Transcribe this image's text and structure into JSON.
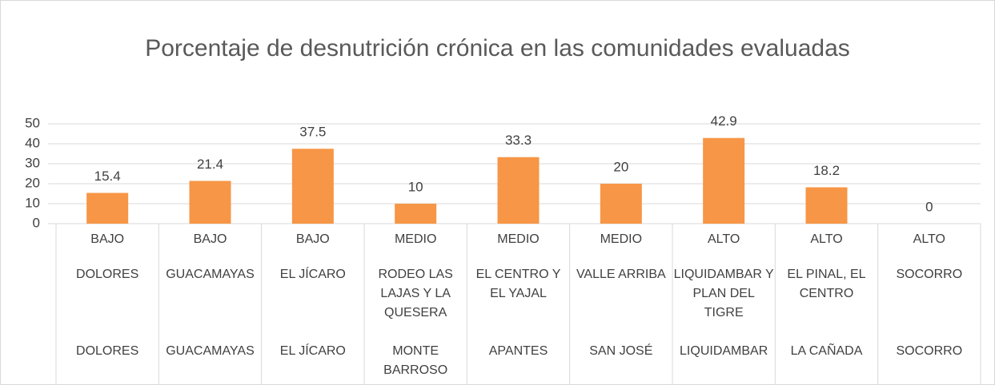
{
  "chart_data": {
    "type": "bar",
    "title": "Porcentaje de desnutrición crónica en las comunidades evaluadas",
    "categories": [
      [
        "BAJO",
        "DOLORES",
        "DOLORES"
      ],
      [
        "BAJO",
        "GUACAMAYAS",
        "GUACAMAYAS"
      ],
      [
        "BAJO",
        "EL JÍCARO",
        "EL JÍCARO"
      ],
      [
        "MEDIO",
        "RODEO LAS LAJAS Y LA QUESERA",
        "MONTE BARROSO"
      ],
      [
        "MEDIO",
        "EL CENTRO Y EL YAJAL",
        "APANTES"
      ],
      [
        "MEDIO",
        "VALLE ARRIBA",
        "SAN JOSÉ"
      ],
      [
        "ALTO",
        "LIQUIDAMBAR Y PLAN DEL TIGRE",
        "LIQUIDAMBAR"
      ],
      [
        "ALTO",
        "EL PINAL, EL CENTRO",
        "LA CAÑADA"
      ],
      [
        "ALTO",
        "SOCORRO",
        "SOCORRO"
      ]
    ],
    "values": [
      15.4,
      21.4,
      37.5,
      10,
      33.3,
      20,
      42.9,
      18.2,
      0
    ],
    "color": "#f79646",
    "ylim": [
      0,
      50
    ],
    "yticks": [
      0,
      10,
      20,
      30,
      40,
      50
    ],
    "grid": true
  }
}
